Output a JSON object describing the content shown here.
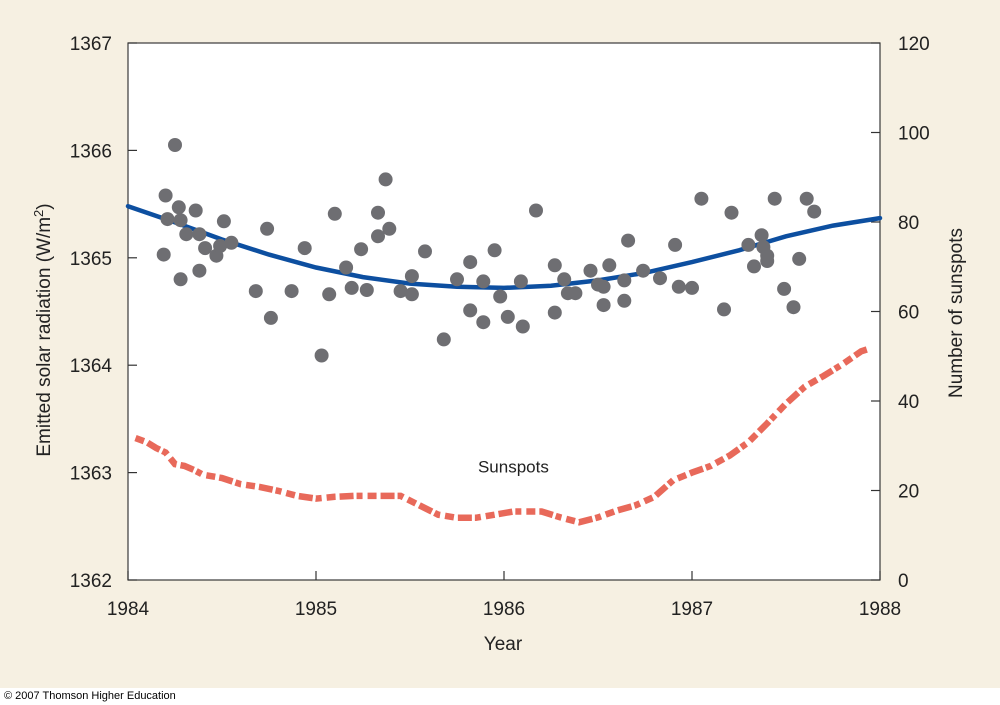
{
  "footer": {
    "copyright": "© 2007 Thomson Higher Education"
  },
  "chart_data": {
    "type": "scatter",
    "xlabel": "Year",
    "ylabel_left": "Emitted solar radiation (W/m²)",
    "ylabel_right": "Number of sunspots",
    "xlim": [
      1984,
      1988
    ],
    "ylim_left": [
      1362,
      1367
    ],
    "ylim_right": [
      0,
      120
    ],
    "x_ticks": [
      1984,
      1985,
      1986,
      1987,
      1988
    ],
    "y_ticks_left": [
      1362,
      1363,
      1364,
      1365,
      1366,
      1367
    ],
    "y_ticks_right": [
      0,
      20,
      40,
      60,
      80,
      100,
      120
    ],
    "grid": false,
    "annotations": [
      {
        "text": "Sunspots",
        "x": 1986.05,
        "y_right": 22
      }
    ],
    "colors": {
      "points": "#6e6e72",
      "trend": "#0d4fa0",
      "sunspots": "#e8695a",
      "plot_bg": "#ffffff",
      "frame_bg": "#f6f0e2"
    },
    "series": [
      {
        "kind": "scatter",
        "axis": "left",
        "points": [
          [
            1984.19,
            1365.03
          ],
          [
            1984.2,
            1365.58
          ],
          [
            1984.21,
            1365.36
          ],
          [
            1984.25,
            1366.05
          ],
          [
            1984.27,
            1365.47
          ],
          [
            1984.28,
            1365.35
          ],
          [
            1984.28,
            1364.8
          ],
          [
            1984.31,
            1365.22
          ],
          [
            1984.36,
            1365.44
          ],
          [
            1984.38,
            1365.22
          ],
          [
            1984.38,
            1364.88
          ],
          [
            1984.41,
            1365.09
          ],
          [
            1984.47,
            1365.02
          ],
          [
            1984.49,
            1365.11
          ],
          [
            1984.51,
            1365.34
          ],
          [
            1984.55,
            1365.14
          ],
          [
            1984.68,
            1364.69
          ],
          [
            1984.74,
            1365.27
          ],
          [
            1984.76,
            1364.44
          ],
          [
            1984.87,
            1364.69
          ],
          [
            1984.94,
            1365.09
          ],
          [
            1985.03,
            1364.09
          ],
          [
            1985.07,
            1364.66
          ],
          [
            1985.1,
            1365.41
          ],
          [
            1985.16,
            1364.91
          ],
          [
            1985.19,
            1364.72
          ],
          [
            1985.24,
            1365.08
          ],
          [
            1985.27,
            1364.7
          ],
          [
            1985.33,
            1365.2
          ],
          [
            1985.33,
            1365.42
          ],
          [
            1985.37,
            1365.73
          ],
          [
            1985.39,
            1365.27
          ],
          [
            1985.45,
            1364.69
          ],
          [
            1985.51,
            1364.83
          ],
          [
            1985.51,
            1364.66
          ],
          [
            1985.58,
            1365.06
          ],
          [
            1985.68,
            1364.24
          ],
          [
            1985.75,
            1364.8
          ],
          [
            1985.82,
            1364.96
          ],
          [
            1985.82,
            1364.51
          ],
          [
            1985.89,
            1364.78
          ],
          [
            1985.89,
            1364.4
          ],
          [
            1985.95,
            1365.07
          ],
          [
            1985.98,
            1364.64
          ],
          [
            1986.02,
            1364.45
          ],
          [
            1986.09,
            1364.78
          ],
          [
            1986.1,
            1364.36
          ],
          [
            1986.17,
            1365.44
          ],
          [
            1986.27,
            1364.93
          ],
          [
            1986.27,
            1364.49
          ],
          [
            1986.32,
            1364.8
          ],
          [
            1986.34,
            1364.67
          ],
          [
            1986.38,
            1364.67
          ],
          [
            1986.46,
            1364.88
          ],
          [
            1986.5,
            1364.75
          ],
          [
            1986.53,
            1364.56
          ],
          [
            1986.53,
            1364.73
          ],
          [
            1986.56,
            1364.93
          ],
          [
            1986.64,
            1364.79
          ],
          [
            1986.64,
            1364.6
          ],
          [
            1986.66,
            1365.16
          ],
          [
            1986.74,
            1364.88
          ],
          [
            1986.83,
            1364.81
          ],
          [
            1986.91,
            1365.12
          ],
          [
            1986.93,
            1364.73
          ],
          [
            1987.0,
            1364.72
          ],
          [
            1987.05,
            1365.55
          ],
          [
            1987.17,
            1364.52
          ],
          [
            1987.21,
            1365.42
          ],
          [
            1987.3,
            1365.12
          ],
          [
            1987.33,
            1364.92
          ],
          [
            1987.37,
            1365.21
          ],
          [
            1987.38,
            1365.1
          ],
          [
            1987.4,
            1365.02
          ],
          [
            1987.4,
            1364.97
          ],
          [
            1987.44,
            1365.55
          ],
          [
            1987.49,
            1364.71
          ],
          [
            1987.54,
            1364.54
          ],
          [
            1987.57,
            1364.99
          ],
          [
            1987.61,
            1365.55
          ],
          [
            1987.65,
            1365.43
          ]
        ]
      },
      {
        "kind": "line",
        "axis": "left",
        "points": [
          [
            1984.0,
            1365.48
          ],
          [
            1984.25,
            1365.33
          ],
          [
            1984.5,
            1365.17
          ],
          [
            1984.75,
            1365.03
          ],
          [
            1985.0,
            1364.91
          ],
          [
            1985.25,
            1364.82
          ],
          [
            1985.5,
            1364.76
          ],
          [
            1985.75,
            1364.73
          ],
          [
            1986.0,
            1364.72
          ],
          [
            1986.25,
            1364.74
          ],
          [
            1986.5,
            1364.79
          ],
          [
            1986.75,
            1364.86
          ],
          [
            1987.0,
            1364.96
          ],
          [
            1987.25,
            1365.07
          ],
          [
            1987.5,
            1365.2
          ],
          [
            1987.75,
            1365.3
          ],
          [
            1988.0,
            1365.37
          ]
        ]
      },
      {
        "kind": "dashed-line",
        "axis": "right",
        "points": [
          [
            1984.04,
            31.7
          ],
          [
            1984.1,
            30.8
          ],
          [
            1984.15,
            29.5
          ],
          [
            1984.2,
            28.5
          ],
          [
            1984.25,
            25.9
          ],
          [
            1984.3,
            25.5
          ],
          [
            1984.35,
            24.6
          ],
          [
            1984.4,
            23.5
          ],
          [
            1984.5,
            22.8
          ],
          [
            1984.6,
            21.4
          ],
          [
            1984.7,
            20.8
          ],
          [
            1984.8,
            19.9
          ],
          [
            1984.9,
            18.8
          ],
          [
            1985.0,
            18.2
          ],
          [
            1985.1,
            18.6
          ],
          [
            1985.2,
            18.8
          ],
          [
            1985.3,
            18.8
          ],
          [
            1985.45,
            18.8
          ],
          [
            1985.55,
            16.7
          ],
          [
            1985.65,
            14.6
          ],
          [
            1985.75,
            13.9
          ],
          [
            1985.85,
            13.9
          ],
          [
            1985.95,
            14.6
          ],
          [
            1986.05,
            15.3
          ],
          [
            1986.2,
            15.3
          ],
          [
            1986.3,
            14.0
          ],
          [
            1986.4,
            12.9
          ],
          [
            1986.5,
            14.0
          ],
          [
            1986.6,
            15.5
          ],
          [
            1986.7,
            16.7
          ],
          [
            1986.8,
            18.6
          ],
          [
            1986.9,
            22.3
          ],
          [
            1987.0,
            24.0
          ],
          [
            1987.1,
            25.5
          ],
          [
            1987.2,
            27.8
          ],
          [
            1987.3,
            30.8
          ],
          [
            1987.4,
            35.0
          ],
          [
            1987.5,
            39.4
          ],
          [
            1987.6,
            43.2
          ],
          [
            1987.7,
            45.6
          ],
          [
            1987.8,
            48.2
          ],
          [
            1987.9,
            51.1
          ],
          [
            1987.93,
            51.5
          ]
        ]
      }
    ]
  }
}
